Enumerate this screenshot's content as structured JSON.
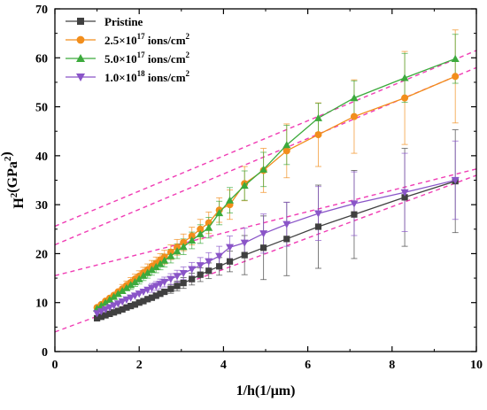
{
  "chart_data": {
    "type": "line",
    "title": "",
    "xlabel": "1/h(1/μm)",
    "ylabel": "H²(GPa²)",
    "xlim": [
      0,
      10
    ],
    "ylim": [
      0,
      70
    ],
    "xticks": [
      "0",
      "2",
      "4",
      "6",
      "8",
      "10"
    ],
    "yticks": [
      "0",
      "10",
      "20",
      "30",
      "40",
      "50",
      "60",
      "70"
    ],
    "grid": false,
    "legend_position": "top-left",
    "fit_line_color": "#f03cb4",
    "series": [
      {
        "name": "Pristine",
        "legend": {
          "base": "Pristine",
          "exp": "",
          "unit": "",
          "unit_exp": ""
        },
        "color": "#404040",
        "marker": "square",
        "x": [
          1.0,
          1.1,
          1.2,
          1.3,
          1.4,
          1.5,
          1.6,
          1.7,
          1.8,
          1.9,
          2.0,
          2.1,
          2.2,
          2.3,
          2.4,
          2.5,
          2.6,
          2.75,
          2.9,
          3.05,
          3.25,
          3.45,
          3.65,
          3.9,
          4.15,
          4.5,
          4.95,
          5.5,
          6.25,
          7.1,
          8.3,
          9.5
        ],
        "y": [
          6.8,
          7.1,
          7.4,
          7.7,
          8.0,
          8.3,
          8.6,
          9.0,
          9.3,
          9.6,
          10.0,
          10.3,
          10.7,
          11.0,
          11.4,
          11.8,
          12.2,
          12.8,
          13.4,
          14.0,
          14.8,
          15.7,
          16.5,
          17.4,
          18.4,
          19.7,
          21.2,
          23.0,
          25.5,
          28.0,
          31.5,
          34.8
        ],
        "err": [
          0.3,
          0.3,
          0.3,
          0.3,
          0.4,
          0.4,
          0.4,
          0.5,
          0.5,
          0.5,
          0.6,
          0.6,
          0.6,
          0.7,
          0.7,
          0.8,
          0.8,
          0.9,
          1.0,
          1.1,
          1.2,
          1.4,
          1.6,
          1.8,
          2.1,
          4.0,
          6.5,
          7.5,
          8.5,
          9.0,
          10.0,
          10.5
        ]
      },
      {
        "name": "2.5×10¹⁷ ions/cm²",
        "legend": {
          "base": "2.5×10",
          "exp": "17",
          "unit": " ions/cm",
          "unit_exp": "2"
        },
        "color": "#f28e1c",
        "marker": "circle",
        "x": [
          1.0,
          1.1,
          1.2,
          1.3,
          1.4,
          1.5,
          1.6,
          1.7,
          1.8,
          1.9,
          2.0,
          2.1,
          2.2,
          2.3,
          2.4,
          2.5,
          2.6,
          2.75,
          2.9,
          3.05,
          3.25,
          3.45,
          3.65,
          3.9,
          4.15,
          4.5,
          4.95,
          5.5,
          6.25,
          7.1,
          8.3,
          9.5
        ],
        "y": [
          9.0,
          9.6,
          10.3,
          10.9,
          11.5,
          12.2,
          12.8,
          13.5,
          14.1,
          14.8,
          15.4,
          16.1,
          16.7,
          17.4,
          18.0,
          18.7,
          19.3,
          20.3,
          21.3,
          22.3,
          23.6,
          25.0,
          26.3,
          28.9,
          30.0,
          34.3,
          37.0,
          41.0,
          44.3,
          48.0,
          51.8,
          56.2
        ],
        "err": [
          0.6,
          0.6,
          0.7,
          0.7,
          0.8,
          0.8,
          0.9,
          0.9,
          1.0,
          1.0,
          1.1,
          1.1,
          1.2,
          1.2,
          1.3,
          1.3,
          1.4,
          1.5,
          1.6,
          1.7,
          1.8,
          2.0,
          2.2,
          2.5,
          3.0,
          3.5,
          4.5,
          5.5,
          6.5,
          7.5,
          9.5,
          9.5
        ]
      },
      {
        "name": "5.0×10¹⁷ ions/cm²",
        "legend": {
          "base": "5.0×10",
          "exp": "17",
          "unit": " ions/cm",
          "unit_exp": "2"
        },
        "color": "#3caa3c",
        "marker": "triangle-up",
        "x": [
          1.0,
          1.1,
          1.2,
          1.3,
          1.4,
          1.5,
          1.6,
          1.7,
          1.8,
          1.9,
          2.0,
          2.1,
          2.2,
          2.3,
          2.4,
          2.5,
          2.6,
          2.75,
          2.9,
          3.05,
          3.25,
          3.45,
          3.65,
          3.9,
          4.15,
          4.5,
          4.95,
          5.5,
          6.25,
          7.1,
          8.3,
          9.5
        ],
        "y": [
          8.8,
          9.4,
          10.0,
          10.6,
          11.2,
          11.8,
          12.4,
          13.0,
          13.6,
          14.2,
          14.8,
          15.5,
          16.1,
          16.7,
          17.3,
          17.9,
          18.6,
          19.5,
          20.5,
          21.4,
          22.7,
          24.0,
          25.3,
          28.3,
          30.9,
          33.9,
          37.2,
          42.2,
          47.7,
          51.8,
          55.9,
          59.8
        ],
        "err": [
          0.5,
          0.5,
          0.6,
          0.6,
          0.7,
          0.7,
          0.8,
          0.8,
          0.9,
          0.9,
          1.0,
          1.0,
          1.1,
          1.1,
          1.2,
          1.2,
          1.3,
          1.4,
          1.5,
          1.6,
          1.7,
          1.9,
          2.1,
          2.4,
          2.6,
          3.0,
          3.5,
          4.0,
          3.0,
          3.5,
          5.0,
          5.0
        ]
      },
      {
        "name": "1.0×10¹⁸ ions/cm²",
        "legend": {
          "base": "1.0×10",
          "exp": "18",
          "unit": " ions/cm",
          "unit_exp": "2"
        },
        "color": "#8a55c8",
        "marker": "triangle-down",
        "x": [
          1.0,
          1.1,
          1.2,
          1.3,
          1.4,
          1.5,
          1.6,
          1.7,
          1.8,
          1.9,
          2.0,
          2.1,
          2.2,
          2.3,
          2.4,
          2.5,
          2.6,
          2.75,
          2.9,
          3.05,
          3.25,
          3.45,
          3.65,
          3.9,
          4.15,
          4.5,
          4.95,
          5.5,
          6.25,
          7.1,
          8.3,
          9.5
        ],
        "y": [
          7.8,
          8.2,
          8.6,
          9.0,
          9.4,
          9.8,
          10.2,
          10.6,
          11.0,
          11.4,
          11.8,
          12.2,
          12.6,
          13.0,
          13.4,
          13.8,
          14.2,
          14.8,
          15.4,
          16.0,
          16.8,
          17.6,
          18.4,
          19.5,
          21.3,
          22.2,
          24.1,
          26.0,
          28.2,
          30.2,
          32.5,
          35.0
        ],
        "err": [
          0.4,
          0.4,
          0.4,
          0.5,
          0.5,
          0.5,
          0.6,
          0.6,
          0.6,
          0.7,
          0.7,
          0.8,
          0.8,
          0.9,
          0.9,
          1.0,
          1.0,
          1.1,
          1.2,
          1.3,
          1.4,
          1.6,
          1.8,
          2.0,
          2.3,
          3.0,
          4.0,
          4.5,
          5.5,
          6.5,
          8.0,
          8.0
        ]
      }
    ],
    "fit_lines": [
      {
        "name": "Pristine fit",
        "x": [
          0,
          10
        ],
        "y": [
          4.0,
          36.0
        ]
      },
      {
        "name": "2.5×10¹⁷ fit",
        "x": [
          0,
          10
        ],
        "y": [
          21.8,
          58.0
        ]
      },
      {
        "name": "5.0×10¹⁷ fit",
        "x": [
          0,
          10
        ],
        "y": [
          25.6,
          61.5
        ]
      },
      {
        "name": "1.0×10¹⁸ fit",
        "x": [
          0,
          10
        ],
        "y": [
          15.5,
          37.3
        ]
      }
    ]
  }
}
